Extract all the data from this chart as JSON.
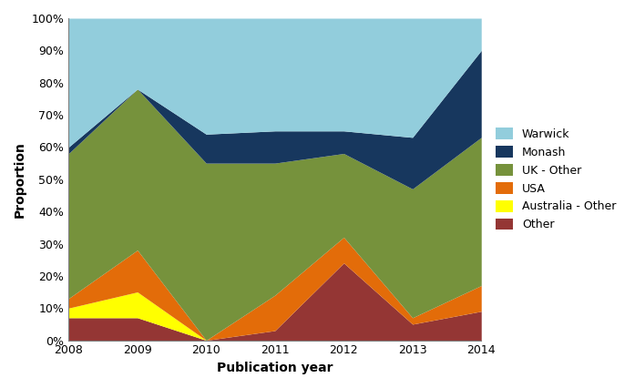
{
  "years": [
    2008,
    2009,
    2010,
    2011,
    2012,
    2013,
    2014
  ],
  "series": {
    "Other": [
      7,
      7,
      0,
      3,
      24,
      5,
      9
    ],
    "Australia - Other": [
      3,
      8,
      0,
      0,
      0,
      0,
      0
    ],
    "USA": [
      3,
      13,
      0,
      11,
      8,
      2,
      8
    ],
    "UK - Other": [
      45,
      50,
      55,
      41,
      26,
      40,
      46
    ],
    "Monash": [
      2,
      0,
      9,
      10,
      7,
      16,
      27
    ],
    "Warwick": [
      40,
      22,
      36,
      35,
      35,
      37,
      10
    ]
  },
  "colors": {
    "Other": "#943634",
    "Australia - Other": "#ffff00",
    "USA": "#e36c09",
    "UK - Other": "#76923c",
    "Monash": "#17375e",
    "Warwick": "#92cddc"
  },
  "xlabel": "Publication year",
  "ylabel": "Proportion",
  "yticks": [
    0,
    10,
    20,
    30,
    40,
    50,
    60,
    70,
    80,
    90,
    100
  ],
  "ytick_labels": [
    "0%",
    "10%",
    "20%",
    "30%",
    "40%",
    "50%",
    "60%",
    "70%",
    "80%",
    "90%",
    "100%"
  ],
  "legend_order": [
    "Warwick",
    "Monash",
    "UK - Other",
    "USA",
    "Australia - Other",
    "Other"
  ],
  "series_order": [
    "Other",
    "Australia - Other",
    "USA",
    "UK - Other",
    "Monash",
    "Warwick"
  ],
  "xlim_left": 2008,
  "xlim_right": 2014,
  "figsize": [
    6.97,
    4.26
  ],
  "dpi": 100,
  "tick_fontsize": 9,
  "label_fontsize": 10,
  "legend_fontsize": 9
}
